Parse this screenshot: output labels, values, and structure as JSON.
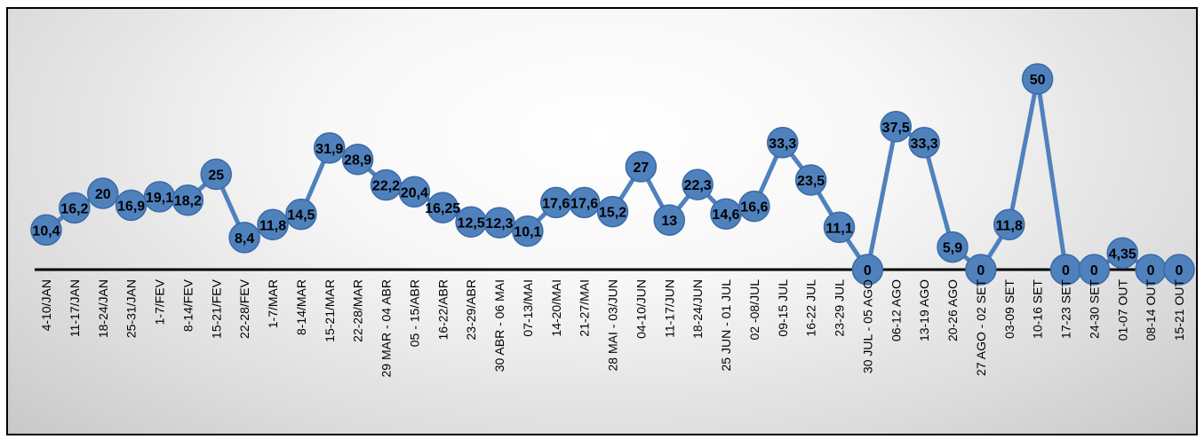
{
  "chart_data": {
    "type": "line",
    "title": "",
    "xlabel": "",
    "ylabel": "",
    "ylim": [
      0,
      55
    ],
    "grid": false,
    "legend": "none",
    "line_color": "#4f81bd",
    "marker_color": "#4f81bd",
    "marker_edge": "#3a6aa8",
    "axis_color": "#000000",
    "categories": [
      "4-10/JAN",
      "11-17/JAN",
      "18-24/JAN",
      "25-31/JAN",
      "1-7/FEV",
      "8-14/FEV",
      "15-21/FEV",
      "22-28/FEV",
      "1-7/MAR",
      "8-14/MAR",
      "15-21/MAR",
      "22-28/MAR",
      "29 MAR - 04 ABR",
      "05 - 15/ABR",
      "16-22/ABR",
      "23-29/ABR",
      "30 ABR - 06 MAI",
      "07-13/MAI",
      "14-20/MAI",
      "21-27/MAI",
      "28 MAI - 03/JUN",
      "04-10/JUN",
      "11-17/JUN",
      "18-24/JUN",
      "25 JUN - 01 JUL",
      "02 -08/JUL",
      "09-15 JUL",
      "16-22 JUL",
      "23-29 JUL",
      "30 JUL - 05 AGO",
      "06-12 AGO",
      "13-19 AGO",
      "20-26 AGO",
      "27 AGO - 02 SET",
      "03-09 SET",
      "10-16 SET",
      "17-23 SET",
      "24-30 SET",
      "01-07 OUT",
      "08-14 OUT",
      "15-21 OUT"
    ],
    "values": [
      10.4,
      16.2,
      20,
      16.9,
      19.1,
      18.2,
      25,
      8.4,
      11.8,
      14.5,
      31.9,
      28.9,
      22.2,
      20.4,
      16.25,
      12.5,
      12.3,
      10.1,
      17.6,
      17.6,
      15.2,
      27,
      13,
      22.3,
      14.6,
      16.6,
      33.3,
      23.5,
      11.1,
      0,
      37.5,
      33.3,
      5.9,
      0,
      11.8,
      50,
      0,
      0,
      4.35,
      0,
      0
    ],
    "data_labels": [
      "10,4",
      "16,2",
      "20",
      "16,9",
      "19,1",
      "18,2",
      "25",
      "8,4",
      "11,8",
      "14,5",
      "31,9",
      "28,9",
      "22,2",
      "20,4",
      "16,25",
      "12,5",
      "12,3",
      "10,1",
      "17,6",
      "17,6",
      "15,2",
      "27",
      "13",
      "22,3",
      "14,6",
      "16,6",
      "33,3",
      "23,5",
      "11,1",
      "0",
      "37,5",
      "33,3",
      "5,9",
      "0",
      "11,8",
      "50",
      "0",
      "0",
      "4,35",
      "0",
      "0"
    ]
  }
}
